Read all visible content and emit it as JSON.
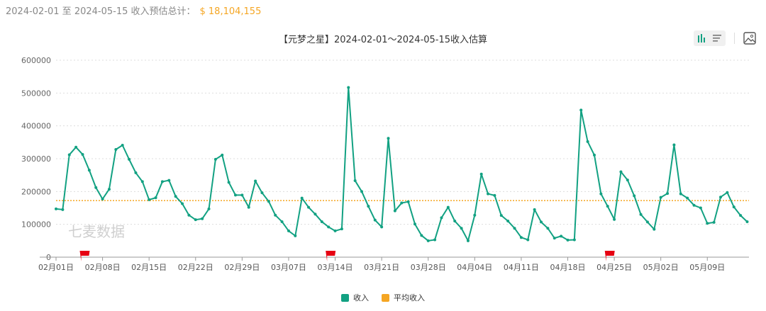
{
  "summary": {
    "range_text": "2024-02-01 至 2024-05-15 收入预估总计：",
    "total": "$ 18,104,155"
  },
  "toolbar": {
    "icons": [
      "bar-chart-icon",
      "list-icon",
      "image-icon",
      "download-icon"
    ]
  },
  "watermark": "七麦数据",
  "colors": {
    "income": "#12a182",
    "average": "#f5a623",
    "flag": "#e60012"
  },
  "chart_data": {
    "type": "line",
    "title": "【元梦之星】2024-02-01～2024-05-15收入估算",
    "date_range": [
      "2024-02-01",
      "2024-05-15"
    ],
    "ylim": [
      0,
      600000
    ],
    "yticks": [
      "0",
      "100000",
      "200000",
      "300000",
      "400000",
      "500000",
      "600000"
    ],
    "xticks": [
      "02月01日",
      "02月08日",
      "02月15日",
      "02月22日",
      "02月29日",
      "03月07日",
      "03月14日",
      "03月21日",
      "03月28日",
      "04月04日",
      "04月11日",
      "04月18日",
      "04月25日",
      "05月02日",
      "05月09日"
    ],
    "grid": true,
    "legend_position": "bottom",
    "flags": [
      "2024-02-05",
      "2024-03-13",
      "2024-04-24"
    ],
    "series": [
      {
        "name": "收入",
        "values": [
          147000,
          145000,
          312000,
          335000,
          313000,
          265000,
          212000,
          177000,
          207000,
          328000,
          341000,
          298000,
          257000,
          230000,
          175000,
          181000,
          230000,
          234000,
          185000,
          163000,
          128000,
          114000,
          117000,
          147000,
          298000,
          311000,
          228000,
          189000,
          189000,
          152000,
          232000,
          196000,
          170000,
          128000,
          108000,
          80000,
          65000,
          180000,
          152000,
          131000,
          108000,
          92000,
          80000,
          86000,
          517000,
          233000,
          200000,
          155000,
          113000,
          92000,
          362000,
          141000,
          165000,
          169000,
          101000,
          66000,
          50000,
          53000,
          120000,
          152000,
          110000,
          88000,
          50000,
          128000,
          253000,
          193000,
          188000,
          127000,
          110000,
          88000,
          60000,
          53000,
          145000,
          107000,
          88000,
          58000,
          64000,
          52000,
          53000,
          448000,
          352000,
          311000,
          193000,
          155000,
          115000,
          260000,
          235000,
          187000,
          130000,
          107000,
          85000,
          182000,
          194000,
          342000,
          193000,
          180000,
          158000,
          150000,
          103000,
          106000,
          183000,
          197000,
          153000,
          127000,
          108000
        ]
      },
      {
        "name": "平均收入",
        "constant": 172420
      }
    ]
  }
}
